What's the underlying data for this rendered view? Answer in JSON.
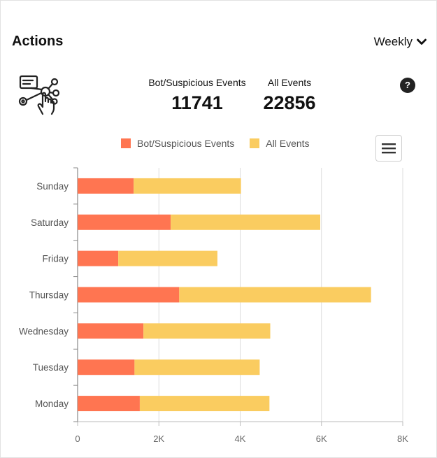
{
  "header": {
    "title": "Actions",
    "period": "Weekly"
  },
  "stats": {
    "bot": {
      "label": "Bot/Suspicious Events",
      "value": "11741"
    },
    "all": {
      "label": "All Events",
      "value": "22856"
    }
  },
  "help_label": "?",
  "colors": {
    "bot": "#FF7551",
    "all": "#FACC60"
  },
  "icons": {
    "actions": "click-network-icon",
    "help": "question-icon",
    "menu": "hamburger-menu-icon",
    "period": "chevron-down-icon"
  },
  "chart_data": {
    "type": "bar",
    "orientation": "horizontal",
    "stacked": true,
    "categories": [
      "Sunday",
      "Saturday",
      "Friday",
      "Thursday",
      "Wednesday",
      "Tuesday",
      "Monday"
    ],
    "series": [
      {
        "name": "Bot/Suspicious Events",
        "values": [
          1380,
          2290,
          1000,
          2500,
          1620,
          1400,
          1530
        ]
      },
      {
        "name": "All Events",
        "values": [
          2640,
          3680,
          2440,
          4720,
          3120,
          3080,
          3190
        ]
      }
    ],
    "xlim": [
      0,
      8000
    ],
    "xticks": [
      "0",
      "2K",
      "4K",
      "6K",
      "8K"
    ],
    "grid": true,
    "legend": "top"
  }
}
